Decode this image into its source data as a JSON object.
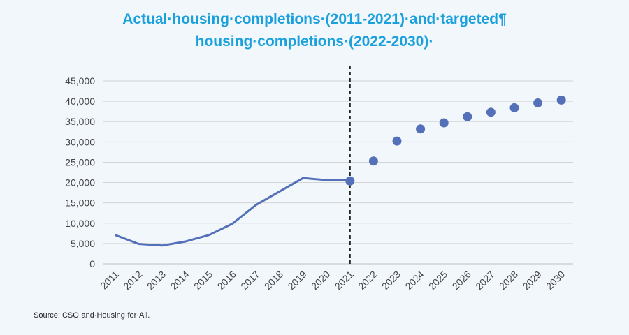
{
  "title_lines": [
    "Actual·housing·completions·(2011-2021)·and·targeted¶",
    "housing·completions·(2022-2030)·"
  ],
  "source": "Source: CSO·and·Housing·for·All.",
  "colors": {
    "title": "#1aa0dc",
    "series": "#5470b8",
    "grid": "#d3d3d3",
    "divider": "#222222"
  },
  "chart_data": {
    "type": "line",
    "title": "Actual·housing·completions·(2011-2021)·and·targeted¶ housing·completions·(2022-2030)·",
    "xlabel": "",
    "ylabel": "",
    "categories": [
      "2011",
      "2012",
      "2013",
      "2014",
      "2015",
      "2016",
      "2017",
      "2018",
      "2019",
      "2020",
      "2021",
      "2022",
      "2023",
      "2024",
      "2025",
      "2026",
      "2027",
      "2028",
      "2029",
      "2030"
    ],
    "ylim": [
      0,
      45000
    ],
    "yticks": [
      0,
      5000,
      10000,
      15000,
      20000,
      25000,
      30000,
      35000,
      40000,
      45000
    ],
    "ytick_labels": [
      "0",
      "5,000",
      "10,000",
      "15,000",
      "20,000",
      "25,000",
      "30,000",
      "35,000",
      "40,000",
      "45,000"
    ],
    "grid": true,
    "divider_at": "2021",
    "series": [
      {
        "style": "line",
        "x": [
          "2011",
          "2012",
          "2013",
          "2014",
          "2015",
          "2016",
          "2017",
          "2018",
          "2019",
          "2020",
          "2021"
        ],
        "values": [
          7100,
          4900,
          4500,
          5500,
          7100,
          9900,
          14500,
          17800,
          21100,
          20600,
          20500
        ]
      },
      {
        "style": "markers",
        "x": [
          "2021",
          "2022",
          "2023",
          "2024",
          "2025",
          "2026",
          "2027",
          "2028",
          "2029",
          "2030"
        ],
        "values": [
          20400,
          25300,
          30200,
          33200,
          34700,
          36200,
          37300,
          38400,
          39600,
          40300
        ]
      }
    ]
  }
}
